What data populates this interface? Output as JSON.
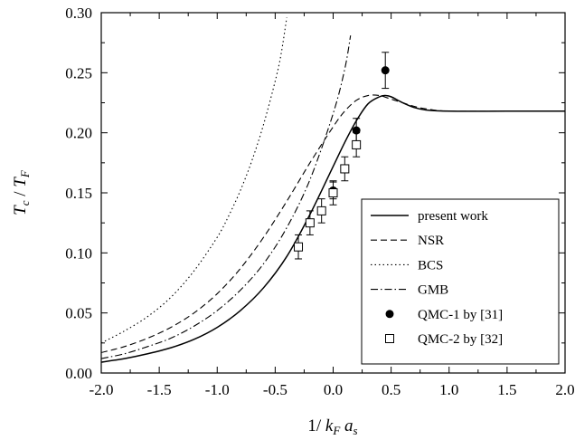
{
  "chart_data": {
    "type": "line",
    "xlim": [
      -2.0,
      2.0
    ],
    "ylim": [
      0.0,
      0.3
    ],
    "x_ticks": [
      "-2.0",
      "-1.5",
      "-1.0",
      "-0.5",
      "0.0",
      "0.5",
      "1.0",
      "1.5",
      "2.0"
    ],
    "y_ticks": [
      "0.00",
      "0.05",
      "0.10",
      "0.15",
      "0.20",
      "0.25",
      "0.30"
    ],
    "xlabel": "1/ k_F a_s",
    "ylabel": "T_c / T_F",
    "grid": false,
    "legend_position": "bottom-right",
    "series": [
      {
        "name": "present work",
        "style": "solid",
        "x": [
          -2.0,
          -1.8,
          -1.6,
          -1.4,
          -1.2,
          -1.0,
          -0.8,
          -0.6,
          -0.4,
          -0.2,
          0.0,
          0.1,
          0.2,
          0.3,
          0.4,
          0.45,
          0.5,
          0.6,
          0.7,
          0.8,
          1.0,
          1.5,
          2.0
        ],
        "y": [
          0.009,
          0.012,
          0.016,
          0.021,
          0.028,
          0.038,
          0.052,
          0.071,
          0.097,
          0.132,
          0.172,
          0.192,
          0.21,
          0.224,
          0.23,
          0.231,
          0.23,
          0.225,
          0.221,
          0.219,
          0.218,
          0.218,
          0.218
        ]
      },
      {
        "name": "NSR",
        "style": "dashed",
        "x": [
          -2.0,
          -1.8,
          -1.6,
          -1.4,
          -1.2,
          -1.0,
          -0.8,
          -0.6,
          -0.4,
          -0.2,
          0.0,
          0.1,
          0.2,
          0.3,
          0.4,
          0.5,
          0.6,
          0.7,
          0.8,
          1.0,
          1.5,
          2.0
        ],
        "y": [
          0.017,
          0.022,
          0.029,
          0.038,
          0.05,
          0.066,
          0.087,
          0.113,
          0.143,
          0.175,
          0.205,
          0.218,
          0.227,
          0.231,
          0.231,
          0.228,
          0.225,
          0.222,
          0.22,
          0.218,
          0.218,
          0.218
        ]
      },
      {
        "name": "BCS",
        "style": "dotted",
        "x": [
          -2.0,
          -1.8,
          -1.6,
          -1.4,
          -1.2,
          -1.0,
          -0.9,
          -0.8,
          -0.7,
          -0.6,
          -0.5,
          -0.45,
          -0.4
        ],
        "y": [
          0.025,
          0.035,
          0.047,
          0.063,
          0.085,
          0.113,
          0.131,
          0.152,
          0.177,
          0.207,
          0.243,
          0.265,
          0.296
        ]
      },
      {
        "name": "GMB",
        "style": "dashdot",
        "x": [
          -2.0,
          -1.8,
          -1.6,
          -1.4,
          -1.2,
          -1.0,
          -0.8,
          -0.6,
          -0.4,
          -0.2,
          0.0,
          0.1,
          0.15
        ],
        "y": [
          0.012,
          0.016,
          0.022,
          0.029,
          0.039,
          0.052,
          0.069,
          0.091,
          0.121,
          0.161,
          0.216,
          0.253,
          0.281
        ]
      }
    ],
    "points": [
      {
        "name": "QMC-1 by [31]",
        "marker": "filled-circle",
        "x": [
          0.0,
          0.2,
          0.45
        ],
        "y": [
          0.152,
          0.202,
          0.252
        ],
        "err": [
          0.007,
          0.01,
          0.015
        ]
      },
      {
        "name": "QMC-2 by [32]",
        "marker": "open-square",
        "x": [
          -0.3,
          -0.2,
          -0.1,
          0.0,
          0.1,
          0.2
        ],
        "y": [
          0.105,
          0.125,
          0.135,
          0.15,
          0.17,
          0.19
        ],
        "err": [
          0.01,
          0.01,
          0.01,
          0.01,
          0.01,
          0.01
        ]
      }
    ]
  }
}
